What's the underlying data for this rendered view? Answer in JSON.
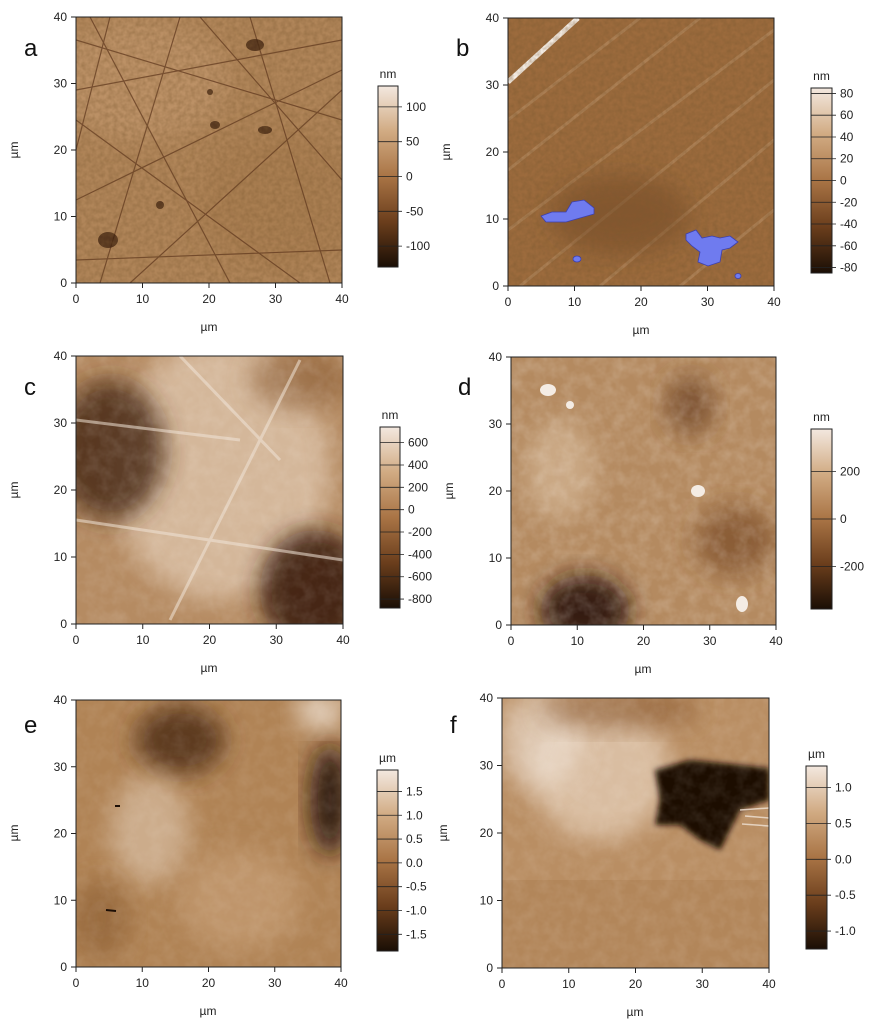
{
  "chart_data": [
    {
      "type": "heatmap",
      "panel_letter": "a",
      "xlabel": "µm",
      "ylabel": "µm",
      "xlim": [
        0,
        40
      ],
      "ylim": [
        0,
        40
      ],
      "x_ticks": [
        0,
        10,
        20,
        30,
        40
      ],
      "y_ticks": [
        0,
        10,
        20,
        30,
        40
      ],
      "colorbar_unit": "nm",
      "colorbar_range": [
        -130,
        130
      ],
      "colorbar_ticks": [
        100,
        50,
        0,
        -50,
        -100
      ],
      "colorbar_tick_labels": [
        "100",
        "50",
        "0",
        "-50",
        "-100"
      ],
      "colorscale": [
        "#1a0e05",
        "#6b3e1c",
        "#a97445",
        "#d1ab83",
        "#f3e8df"
      ]
    },
    {
      "type": "heatmap",
      "panel_letter": "b",
      "xlabel": "µm",
      "ylabel": "µm",
      "xlim": [
        0,
        40
      ],
      "ylim": [
        0,
        40
      ],
      "x_ticks": [
        0,
        10,
        20,
        30,
        40
      ],
      "y_ticks": [
        0,
        10,
        20,
        30,
        40
      ],
      "colorbar_unit": "nm",
      "colorbar_range": [
        -85,
        85
      ],
      "colorbar_ticks": [
        80,
        60,
        40,
        20,
        0,
        -20,
        -40,
        -60,
        -80
      ],
      "colorbar_tick_labels": [
        "80",
        "60",
        "40",
        "20",
        "0",
        "-20",
        "-40",
        "-60",
        "-80"
      ],
      "colorscale": [
        "#1a0e05",
        "#6b3e1c",
        "#a97445",
        "#d1ab83",
        "#f3e8df"
      ],
      "highlight_color": "#6f7bef"
    },
    {
      "type": "heatmap",
      "panel_letter": "c",
      "xlabel": "µm",
      "ylabel": "µm",
      "xlim": [
        0,
        40
      ],
      "ylim": [
        0,
        40
      ],
      "x_ticks": [
        0,
        10,
        20,
        30,
        40
      ],
      "y_ticks": [
        0,
        10,
        20,
        30,
        40
      ],
      "colorbar_unit": "nm",
      "colorbar_range": [
        -880,
        740
      ],
      "colorbar_ticks": [
        600,
        400,
        200,
        0,
        -200,
        -400,
        -600,
        -800
      ],
      "colorbar_tick_labels": [
        "600",
        "400",
        "200",
        "0",
        "-200",
        "-400",
        "-600",
        "-800"
      ],
      "colorscale": [
        "#1a0e05",
        "#6b3e1c",
        "#a97445",
        "#d1ab83",
        "#f3e8df"
      ]
    },
    {
      "type": "heatmap",
      "panel_letter": "d",
      "xlabel": "µm",
      "ylabel": "µm",
      "xlim": [
        0,
        40
      ],
      "ylim": [
        0,
        40
      ],
      "x_ticks": [
        0,
        10,
        20,
        30,
        40
      ],
      "y_ticks": [
        0,
        10,
        20,
        30,
        40
      ],
      "colorbar_unit": "nm",
      "colorbar_range": [
        -380,
        380
      ],
      "colorbar_ticks": [
        200,
        0,
        -200
      ],
      "colorbar_tick_labels": [
        "200",
        "0",
        "-200"
      ],
      "colorscale": [
        "#1a0e05",
        "#6b3e1c",
        "#a97445",
        "#d1ab83",
        "#f3e8df"
      ]
    },
    {
      "type": "heatmap",
      "panel_letter": "e",
      "xlabel": "µm",
      "ylabel": "µm",
      "xlim": [
        0,
        40
      ],
      "ylim": [
        0,
        40
      ],
      "x_ticks": [
        0,
        10,
        20,
        30,
        40
      ],
      "y_ticks": [
        0,
        10,
        20,
        30,
        40
      ],
      "colorbar_unit": "µm",
      "colorbar_range": [
        -1.85,
        1.95
      ],
      "colorbar_ticks": [
        1.5,
        1.0,
        0.5,
        0.0,
        -0.5,
        -1.0,
        -1.5
      ],
      "colorbar_tick_labels": [
        "1.5",
        "1.0",
        "0.5",
        "0.0",
        "-0.5",
        "-1.0",
        "-1.5"
      ],
      "colorscale": [
        "#1a0e05",
        "#6b3e1c",
        "#a97445",
        "#d1ab83",
        "#f3e8df"
      ]
    },
    {
      "type": "heatmap",
      "panel_letter": "f",
      "xlabel": "µm",
      "ylabel": "µm",
      "xlim": [
        0,
        40
      ],
      "ylim": [
        0,
        40
      ],
      "x_ticks": [
        0,
        10,
        20,
        30,
        40
      ],
      "y_ticks": [
        0,
        10,
        20,
        30,
        40
      ],
      "colorbar_unit": "µm",
      "colorbar_range": [
        -1.25,
        1.3
      ],
      "colorbar_ticks": [
        1.0,
        0.5,
        0.0,
        -0.5,
        -1.0
      ],
      "colorbar_tick_labels": [
        "1.0",
        "0.5",
        "0.0",
        "-0.5",
        "-1.0"
      ],
      "colorscale": [
        "#1a0e05",
        "#6b3e1c",
        "#a97445",
        "#d1ab83",
        "#f3e8df"
      ]
    }
  ]
}
